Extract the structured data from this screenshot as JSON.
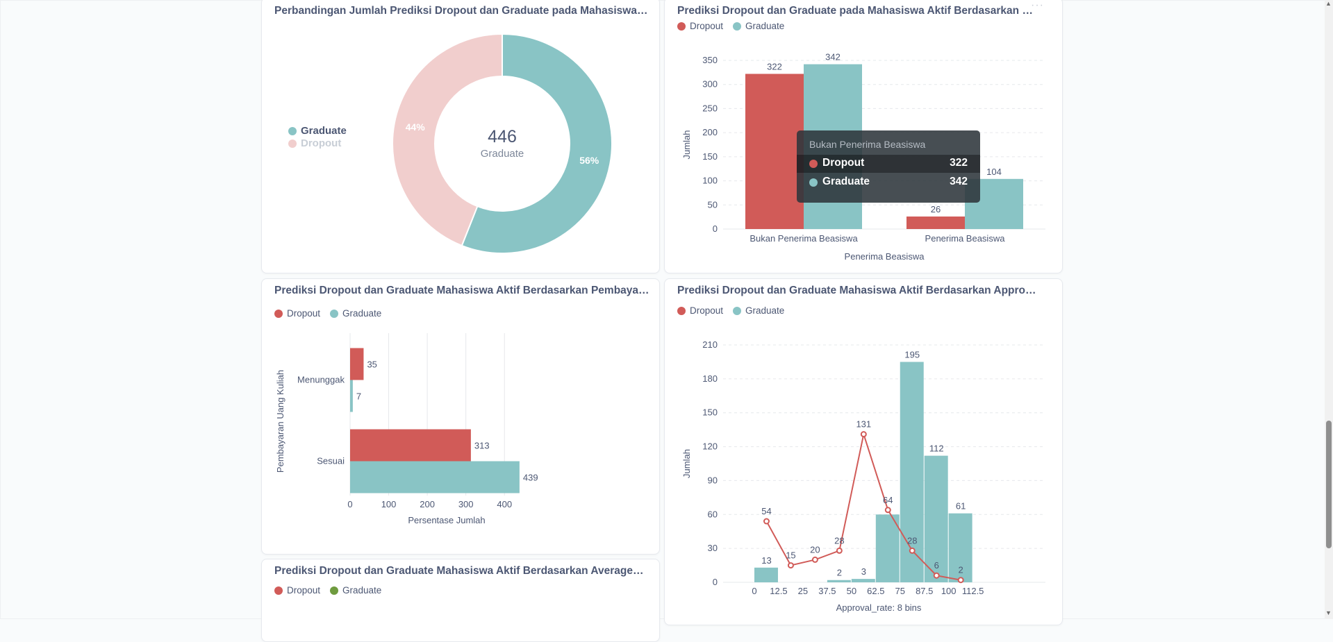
{
  "colors": {
    "dropout": "#d15b58",
    "graduate": "#89c4c5",
    "graduate_green": "#6f9b3f",
    "dropout_faded": "#f1cecd",
    "grid": "#e6e8eb"
  },
  "cards": {
    "donut": {
      "title": "Perbandingan Jumlah Prediksi Dropout dan Graduate pada Mahasiswa Ak...",
      "legend": [
        "Graduate",
        "Dropout"
      ],
      "center_value": "446",
      "center_label": "Graduate"
    },
    "beasiswa": {
      "title": "Prediksi Dropout dan Graduate pada Mahasiswa Aktif Berdasarkan Pener...",
      "legend": [
        "Dropout",
        "Graduate"
      ],
      "tooltip": {
        "title": "Bukan Penerima Beasiswa",
        "rows": [
          {
            "label": "Dropout",
            "value": "322"
          },
          {
            "label": "Graduate",
            "value": "342"
          }
        ]
      }
    },
    "pembayaran": {
      "title": "Prediksi Dropout dan Graduate Mahasiswa Aktif Berdasarkan Pembayara...",
      "legend": [
        "Dropout",
        "Graduate"
      ]
    },
    "approval": {
      "title": "Prediksi Dropout dan Graduate Mahasiswa Aktif Berdasarkan Approval_r...",
      "legend": [
        "Dropout",
        "Graduate"
      ]
    },
    "average": {
      "title": "Prediksi Dropout dan Graduate Mahasiswa Aktif Berdasarkan Average_gr...",
      "legend": [
        "Dropout",
        "Graduate"
      ]
    }
  },
  "chart_data": [
    {
      "type": "pie",
      "variant": "donut",
      "categories": [
        "Graduate",
        "Dropout"
      ],
      "values": [
        56,
        44
      ],
      "value_labels": [
        "56%",
        "44%"
      ],
      "total_label": "446",
      "total_caption": "Graduate"
    },
    {
      "type": "bar",
      "categories": [
        "Bukan Penerima Beasiswa",
        "Penerima Beasiswa"
      ],
      "series": [
        {
          "name": "Dropout",
          "values": [
            322,
            26
          ]
        },
        {
          "name": "Graduate",
          "values": [
            342,
            104
          ]
        }
      ],
      "xlabel": "Penerima Beasiswa",
      "ylabel": "Jumlah",
      "ylim": [
        0,
        350
      ],
      "yticks": [
        0,
        50,
        100,
        150,
        200,
        250,
        300,
        350
      ],
      "grid": true
    },
    {
      "type": "bar",
      "orientation": "horizontal",
      "categories": [
        "Menunggak",
        "Sesuai"
      ],
      "series": [
        {
          "name": "Dropout",
          "values": [
            35,
            313
          ]
        },
        {
          "name": "Graduate",
          "values": [
            7,
            439
          ]
        }
      ],
      "xlabel": "Persentase Jumlah",
      "ylabel": "Pembayaran Uang Kuliah",
      "xlim": [
        0,
        450
      ],
      "xticks": [
        0,
        100,
        200,
        300,
        400
      ],
      "grid": true
    },
    {
      "type": "bar",
      "variant": "histogram with line",
      "x_ticks": [
        0,
        12.5,
        25,
        37.5,
        50,
        62.5,
        75,
        87.5,
        100,
        112.5
      ],
      "xlabel": "Approval_rate: 8 bins",
      "ylabel": "Jumlah",
      "ylim": [
        0,
        210
      ],
      "yticks": [
        0,
        30,
        60,
        90,
        120,
        150,
        180,
        210
      ],
      "series": [
        {
          "name": "Graduate",
          "kind": "bar",
          "bins": [
            [
              0,
              12.5
            ],
            [
              37.5,
              50
            ],
            [
              50,
              62.5
            ],
            [
              62.5,
              75
            ],
            [
              75,
              87.5
            ],
            [
              87.5,
              100
            ],
            [
              100,
              112.5
            ]
          ],
          "values": [
            13,
            2,
            3,
            60,
            195,
            112,
            61
          ],
          "labels": [
            "13",
            "2",
            "3",
            "",
            "195",
            "112",
            "61"
          ]
        },
        {
          "name": "Dropout",
          "kind": "line",
          "x": [
            6.25,
            18.75,
            31.25,
            43.75,
            56.25,
            68.75,
            81.25,
            93.75,
            106.25
          ],
          "values": [
            54,
            15,
            20,
            28,
            131,
            64,
            28,
            6,
            2
          ]
        }
      ],
      "grid": true
    }
  ]
}
